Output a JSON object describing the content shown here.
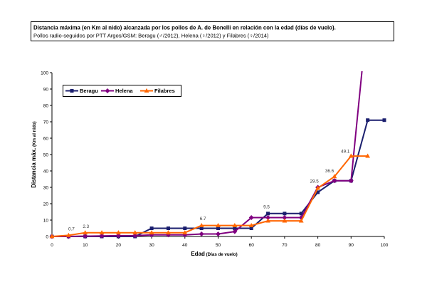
{
  "chart_data": {
    "type": "line",
    "title": "Distancia máxima (en Km al nido) alcanzada por los pollos de A. de Bonelli en relación con la edad (días de vuelo).",
    "subtitle": "Pollos radio-seguidos por PTT Argos/GSM: Beragu (♂/2012), Helena (♀/2012) y Filabres (♀/2014)",
    "xlabel": "Edad (Días de vuelo)",
    "ylabel": "Distancia máx. (Km al nido)",
    "xlim": [
      0,
      100
    ],
    "ylim": [
      0,
      100
    ],
    "xticks": [
      0,
      10,
      20,
      30,
      40,
      50,
      60,
      70,
      80,
      90,
      100
    ],
    "yticks": [
      0,
      10,
      20,
      30,
      40,
      50,
      60,
      70,
      80,
      90,
      100
    ],
    "grid": false,
    "legend": {
      "position": "top-left"
    },
    "series": [
      {
        "name": "Beragu",
        "color": "#1b1f6e",
        "marker": "square",
        "x": [
          0,
          5,
          10,
          15,
          20,
          25,
          30,
          35,
          40,
          45,
          50,
          55,
          60,
          65,
          70,
          75,
          80,
          85,
          90,
          95,
          100
        ],
        "values": [
          0,
          0,
          0,
          0,
          0,
          0,
          5,
          5,
          5,
          5,
          5,
          5,
          5,
          14,
          14,
          14,
          27,
          34,
          34,
          71,
          71
        ]
      },
      {
        "name": "Helena",
        "color": "#800080",
        "marker": "diamond",
        "x": [
          0,
          5,
          10,
          15,
          20,
          25,
          30,
          35,
          40,
          45,
          50,
          55,
          60,
          65,
          70,
          75,
          80,
          85,
          90,
          95
        ],
        "values": [
          0,
          0,
          0.2,
          0.3,
          0.5,
          0.5,
          1,
          1,
          1,
          1.5,
          1.5,
          3,
          11.5,
          11.5,
          11.5,
          11.5,
          30,
          34,
          34,
          136
        ]
      },
      {
        "name": "Filabres",
        "color": "#ff6600",
        "marker": "triangle",
        "x": [
          0,
          5,
          10,
          15,
          20,
          25,
          30,
          35,
          40,
          45,
          50,
          55,
          60,
          65,
          70,
          75,
          80,
          85,
          90,
          95
        ],
        "values": [
          0,
          0.7,
          2.3,
          2.3,
          2.3,
          2.3,
          2.3,
          2.3,
          2.3,
          6.7,
          6.7,
          6.7,
          6.7,
          9.5,
          9.5,
          9.5,
          29.5,
          36.6,
          49.1,
          49.1
        ],
        "labels": [
          null,
          "0.7",
          "2.3",
          null,
          null,
          null,
          null,
          null,
          null,
          "6.7",
          null,
          null,
          null,
          "9.5",
          null,
          null,
          "29.5",
          "36.6",
          "49.1",
          null
        ]
      }
    ]
  }
}
